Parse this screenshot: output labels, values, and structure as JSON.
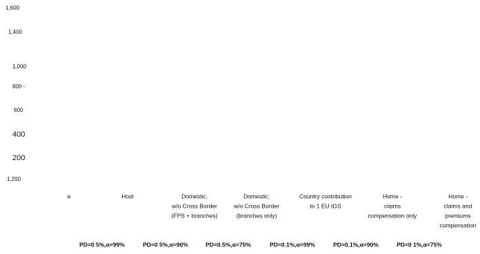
{
  "y_labels": [
    "1,600",
    "1,400",
    "1,000",
    "800 -",
    "600",
    "400",
    "200",
    "1,200"
  ],
  "categories": [
    [
      "e"
    ],
    [
      "Host"
    ],
    [
      "Domestic,",
      "w/o Cross Border",
      "(FPS + branches)"
    ],
    [
      "Domestic,",
      "w/o Cross Border",
      "(branches only)"
    ],
    [
      "Country contribution",
      "to 1 EU IGS"
    ],
    [
      "Home -",
      "claims",
      "compensation only"
    ],
    [
      "Home -",
      "claims and",
      "premiums",
      "compensation"
    ]
  ],
  "series_labels": [
    "PD=0 5%,α=99%",
    "PD=0 5%,α=90%",
    "PD=0.5%,α=75%",
    "PD=0.1%,α=99%",
    "PD=0.1%,α=90%",
    "PD=0 1%,α=75%"
  ]
}
